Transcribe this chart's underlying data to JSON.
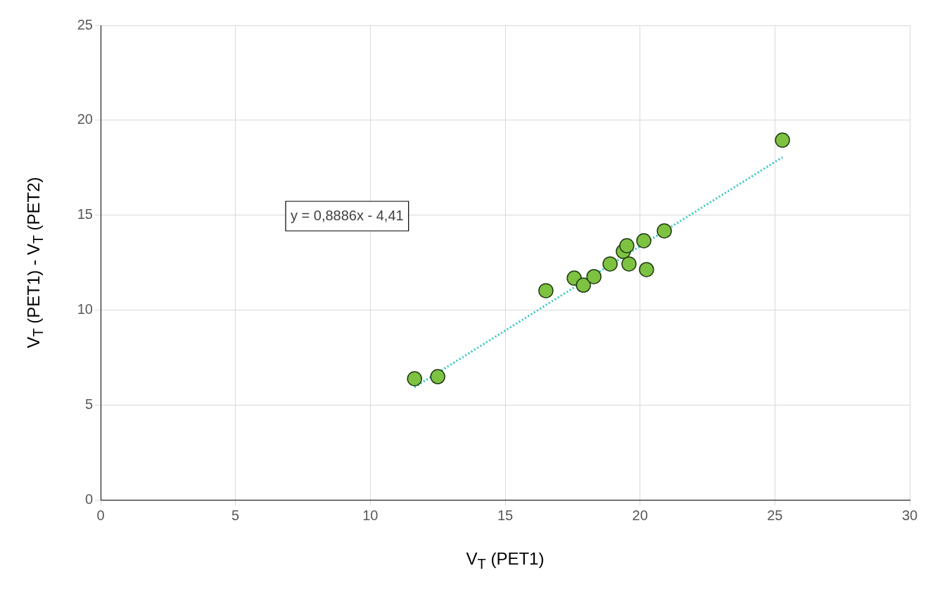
{
  "chart_data": {
    "type": "scatter",
    "xlabel": "V$_{T}$ (PET1)",
    "ylabel": "V$_{T}$ (PET1) - V$_{T}$ (PET2)",
    "xlim": [
      0,
      30
    ],
    "xticks": [
      0,
      5,
      10,
      15,
      20,
      25,
      30
    ],
    "ylim": [
      0,
      25
    ],
    "yticks": [
      0,
      5,
      10,
      15,
      20,
      25
    ],
    "grid": true,
    "legend": false,
    "marker": "circle",
    "annotations": [
      "y = 0,8886x - 4,41"
    ],
    "series": [
      {
        "color": "#7ec242",
        "x": [
          11.64,
          12.5,
          16.51,
          17.56,
          17.9,
          18.29,
          18.89,
          19.38,
          19.51,
          19.59,
          20.14,
          20.24,
          20.9,
          25.28
        ],
        "values": [
          6.38,
          6.49,
          11.02,
          11.68,
          11.31,
          11.76,
          12.43,
          13.09,
          13.39,
          12.43,
          13.65,
          12.13,
          14.17,
          18.95
        ]
      },
      {
        "type": "line",
        "color": "#33c7c0",
        "line_style": "dotted",
        "marker": "none",
        "x": [
          11.64,
          25.28
        ],
        "values": [
          5.93,
          18.05
        ]
      }
    ]
  }
}
